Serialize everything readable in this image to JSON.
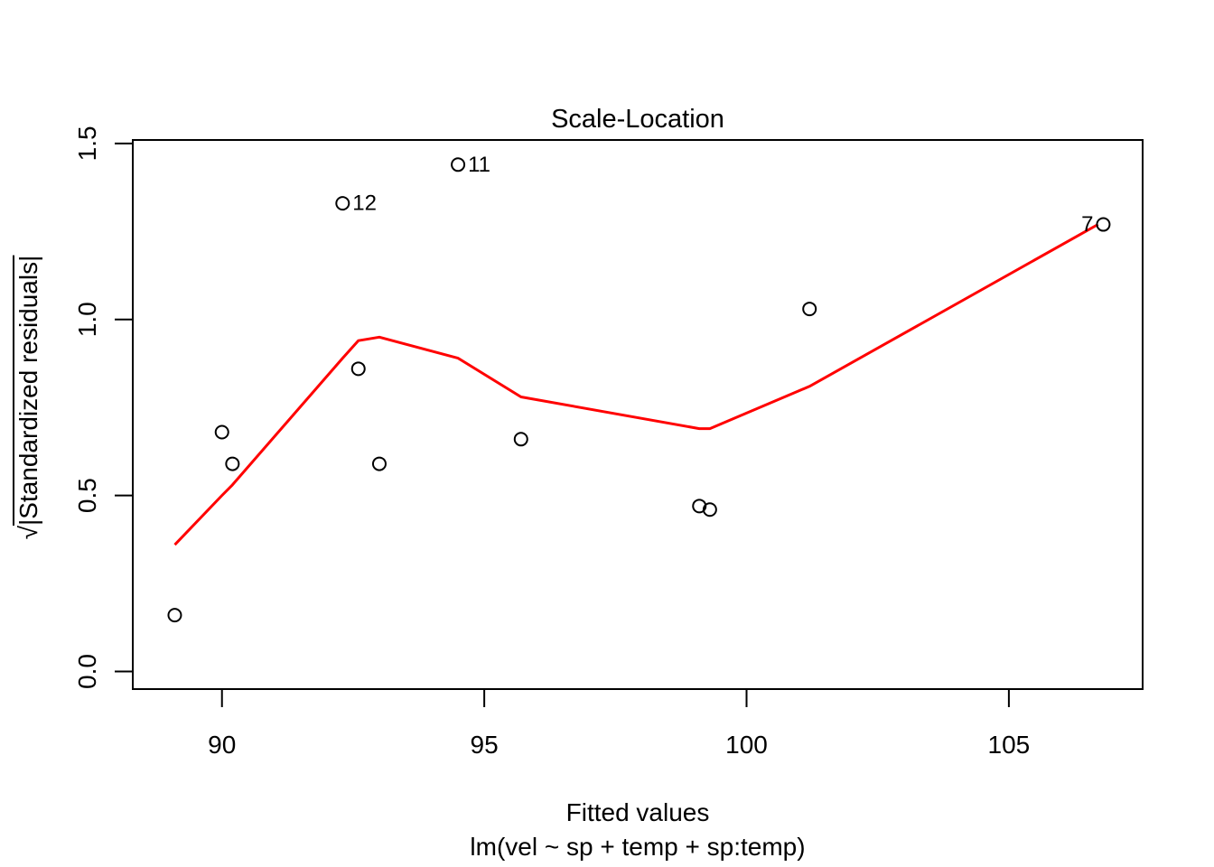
{
  "chart_data": {
    "type": "scatter",
    "title": "Scale-Location",
    "xlabel": "Fitted values",
    "model_label": "lm(vel ~ sp + temp + sp:temp)",
    "ylabel": {
      "radical": "√",
      "overlined": "|Standardized residuals|"
    },
    "x_ticks": [
      90,
      95,
      100,
      105
    ],
    "y_ticks": [
      0.0,
      0.5,
      1.0,
      1.5
    ],
    "xlim": [
      88.3,
      107.55
    ],
    "ylim": [
      -0.05,
      1.51
    ],
    "grid": false,
    "legend": null,
    "axis_color": "#000000",
    "point_color": "#000000",
    "smooth_color": "#FF0000",
    "points": [
      {
        "x": 89.1,
        "y": 0.16,
        "label": null
      },
      {
        "x": 90.0,
        "y": 0.68,
        "label": null
      },
      {
        "x": 90.2,
        "y": 0.59,
        "label": null
      },
      {
        "x": 92.3,
        "y": 1.33,
        "label": "12",
        "label_side": "right"
      },
      {
        "x": 92.6,
        "y": 0.86,
        "label": null
      },
      {
        "x": 93.0,
        "y": 0.59,
        "label": null
      },
      {
        "x": 94.5,
        "y": 1.44,
        "label": "11",
        "label_side": "right"
      },
      {
        "x": 95.7,
        "y": 0.66,
        "label": null
      },
      {
        "x": 99.1,
        "y": 0.47,
        "label": null
      },
      {
        "x": 99.3,
        "y": 0.46,
        "label": null
      },
      {
        "x": 101.2,
        "y": 1.03,
        "label": null
      },
      {
        "x": 106.8,
        "y": 1.27,
        "label": "7",
        "label_side": "left"
      }
    ],
    "smooth_line": [
      [
        89.1,
        0.36
      ],
      [
        90.0,
        0.5
      ],
      [
        90.2,
        0.53
      ],
      [
        92.3,
        0.89
      ],
      [
        92.6,
        0.94
      ],
      [
        93.0,
        0.95
      ],
      [
        94.5,
        0.89
      ],
      [
        95.7,
        0.78
      ],
      [
        99.1,
        0.69
      ],
      [
        99.3,
        0.69
      ],
      [
        101.2,
        0.81
      ],
      [
        106.7,
        1.27
      ]
    ]
  }
}
